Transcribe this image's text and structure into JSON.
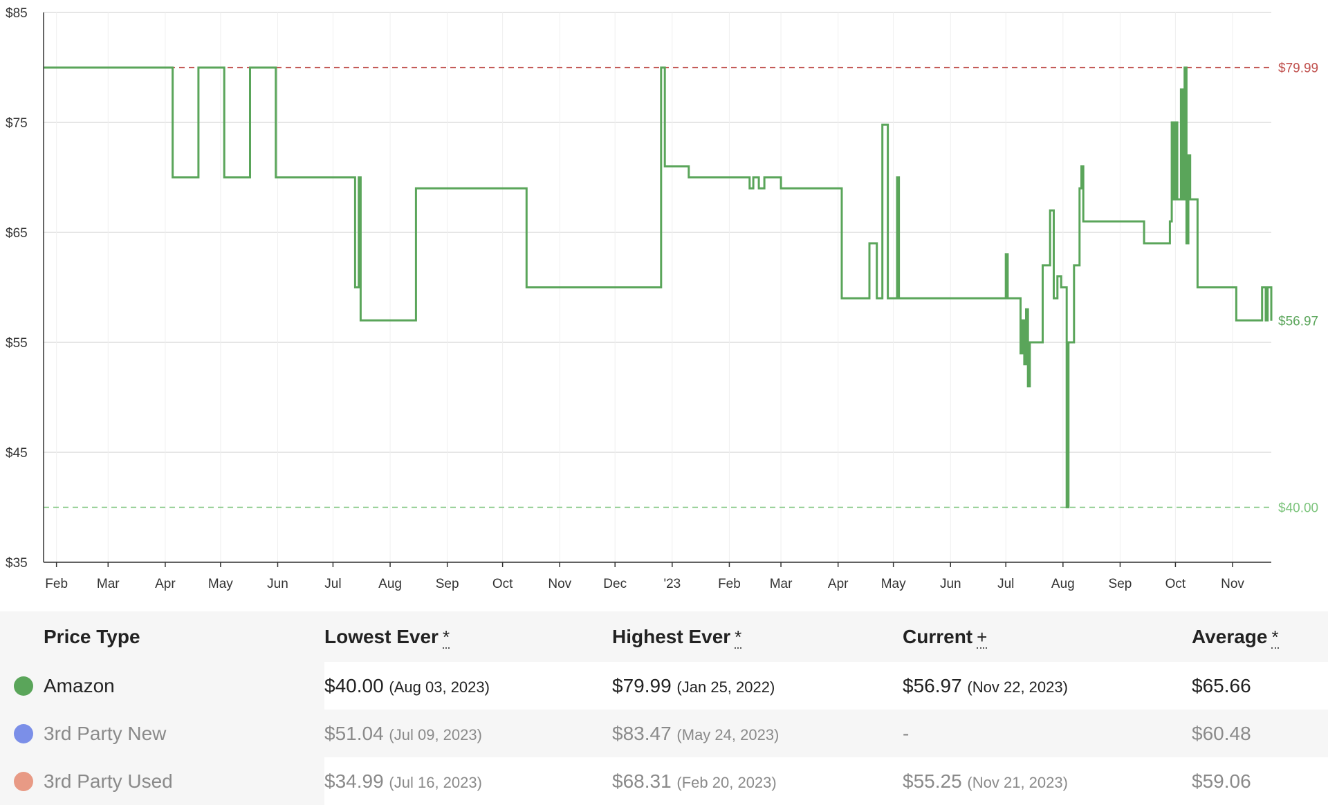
{
  "chart_data": {
    "type": "line",
    "title": "",
    "xlabel": "",
    "ylabel": "",
    "ylim": [
      35,
      85
    ],
    "y_ticks": [
      "$85",
      "$75",
      "$65",
      "$55",
      "$45",
      "$35"
    ],
    "y_tick_values": [
      85,
      75,
      65,
      55,
      45,
      35
    ],
    "x_range": [
      "2022-01-25",
      "2023-11-22"
    ],
    "x_ticks": [
      {
        "label": "Feb",
        "date": "2022-02-01"
      },
      {
        "label": "Mar",
        "date": "2022-03-01"
      },
      {
        "label": "Apr",
        "date": "2022-04-01"
      },
      {
        "label": "May",
        "date": "2022-05-01"
      },
      {
        "label": "Jun",
        "date": "2022-06-01"
      },
      {
        "label": "Jul",
        "date": "2022-07-01"
      },
      {
        "label": "Aug",
        "date": "2022-08-01"
      },
      {
        "label": "Sep",
        "date": "2022-09-01"
      },
      {
        "label": "Oct",
        "date": "2022-10-01"
      },
      {
        "label": "Nov",
        "date": "2022-11-01"
      },
      {
        "label": "Dec",
        "date": "2022-12-01"
      },
      {
        "label": "'23",
        "date": "2023-01-01"
      },
      {
        "label": "Feb",
        "date": "2023-02-01"
      },
      {
        "label": "Mar",
        "date": "2023-03-01"
      },
      {
        "label": "Apr",
        "date": "2023-04-01"
      },
      {
        "label": "May",
        "date": "2023-05-01"
      },
      {
        "label": "Jun",
        "date": "2023-06-01"
      },
      {
        "label": "Jul",
        "date": "2023-07-01"
      },
      {
        "label": "Aug",
        "date": "2023-08-01"
      },
      {
        "label": "Sep",
        "date": "2023-09-01"
      },
      {
        "label": "Oct",
        "date": "2023-10-01"
      },
      {
        "label": "Nov",
        "date": "2023-11-01"
      }
    ],
    "grid": true,
    "series": [
      {
        "name": "Amazon",
        "color": "#5aa55a",
        "step": true,
        "points": [
          [
            "2022-01-25",
            79.99
          ],
          [
            "2022-04-05",
            70.0
          ],
          [
            "2022-04-19",
            79.99
          ],
          [
            "2022-05-03",
            70.0
          ],
          [
            "2022-05-17",
            79.99
          ],
          [
            "2022-05-31",
            70.0
          ],
          [
            "2022-07-13",
            60.0
          ],
          [
            "2022-07-15",
            70.0
          ],
          [
            "2022-07-16",
            57.0
          ],
          [
            "2022-08-15",
            69.0
          ],
          [
            "2022-10-14",
            60.0
          ],
          [
            "2022-12-26",
            79.99
          ],
          [
            "2022-12-28",
            71.0
          ],
          [
            "2023-01-10",
            70.0
          ],
          [
            "2023-02-12",
            69.0
          ],
          [
            "2023-02-14",
            70.0
          ],
          [
            "2023-02-17",
            69.0
          ],
          [
            "2023-02-20",
            70.0
          ],
          [
            "2023-03-01",
            69.0
          ],
          [
            "2023-04-03",
            59.0
          ],
          [
            "2023-04-18",
            64.0
          ],
          [
            "2023-04-22",
            59.0
          ],
          [
            "2023-04-25",
            74.8
          ],
          [
            "2023-04-28",
            59.0
          ],
          [
            "2023-05-03",
            70.0
          ],
          [
            "2023-05-04",
            59.0
          ],
          [
            "2023-07-01",
            63.0
          ],
          [
            "2023-07-02",
            59.0
          ],
          [
            "2023-07-09",
            54.0
          ],
          [
            "2023-07-10",
            57.0
          ],
          [
            "2023-07-11",
            53.0
          ],
          [
            "2023-07-12",
            58.0
          ],
          [
            "2023-07-13",
            51.0
          ],
          [
            "2023-07-14",
            55.0
          ],
          [
            "2023-07-20",
            55.0
          ],
          [
            "2023-07-21",
            62.0
          ],
          [
            "2023-07-25",
            67.0
          ],
          [
            "2023-07-27",
            59.0
          ],
          [
            "2023-07-29",
            61.0
          ],
          [
            "2023-07-31",
            60.0
          ],
          [
            "2023-08-03",
            40.0
          ],
          [
            "2023-08-04",
            55.0
          ],
          [
            "2023-08-07",
            62.0
          ],
          [
            "2023-08-10",
            69.0
          ],
          [
            "2023-08-11",
            71.0
          ],
          [
            "2023-08-12",
            66.0
          ],
          [
            "2023-09-14",
            64.0
          ],
          [
            "2023-09-28",
            66.0
          ],
          [
            "2023-09-29",
            75.0
          ],
          [
            "2023-09-30",
            68.0
          ],
          [
            "2023-10-01",
            75.0
          ],
          [
            "2023-10-02",
            68.0
          ],
          [
            "2023-10-04",
            78.0
          ],
          [
            "2023-10-05",
            68.0
          ],
          [
            "2023-10-06",
            79.99
          ],
          [
            "2023-10-07",
            64.0
          ],
          [
            "2023-10-08",
            72.0
          ],
          [
            "2023-10-09",
            68.0
          ],
          [
            "2023-10-13",
            60.0
          ],
          [
            "2023-11-03",
            57.0
          ],
          [
            "2023-11-17",
            60.0
          ],
          [
            "2023-11-19",
            57.0
          ],
          [
            "2023-11-20",
            60.0
          ],
          [
            "2023-11-22",
            56.97
          ]
        ]
      }
    ],
    "reference_lines": [
      {
        "value": 79.99,
        "label": "$79.99",
        "color": "#c0504d"
      },
      {
        "value": 40.0,
        "label": "$40.00",
        "color": "#7cc47c"
      }
    ],
    "end_label": {
      "value": 56.97,
      "label": "$56.97",
      "color": "#5aa55a"
    }
  },
  "table": {
    "headers": [
      {
        "label": "Price Type",
        "mark": ""
      },
      {
        "label": "Lowest Ever",
        "mark": "*"
      },
      {
        "label": "Highest Ever",
        "mark": "*"
      },
      {
        "label": "Current",
        "mark": "+"
      },
      {
        "label": "Average",
        "mark": "*"
      }
    ],
    "rows": [
      {
        "name": "Amazon",
        "color": "#5aa55a",
        "lowest": "$40.00",
        "lowest_date": "(Aug 03, 2023)",
        "highest": "$79.99",
        "highest_date": "(Jan 25, 2022)",
        "current": "$56.97",
        "current_date": "(Nov 22, 2023)",
        "average": "$65.66"
      },
      {
        "name": "3rd Party New",
        "color": "#7b8fe8",
        "lowest": "$51.04",
        "lowest_date": "(Jul 09, 2023)",
        "highest": "$83.47",
        "highest_date": "(May 24, 2023)",
        "current": "-",
        "current_date": "",
        "average": "$60.48"
      },
      {
        "name": "3rd Party Used",
        "color": "#e89a85",
        "lowest": "$34.99",
        "lowest_date": "(Jul 16, 2023)",
        "highest": "$68.31",
        "highest_date": "(Feb 20, 2023)",
        "current": "$55.25",
        "current_date": "(Nov 21, 2023)",
        "average": "$59.06"
      }
    ]
  }
}
